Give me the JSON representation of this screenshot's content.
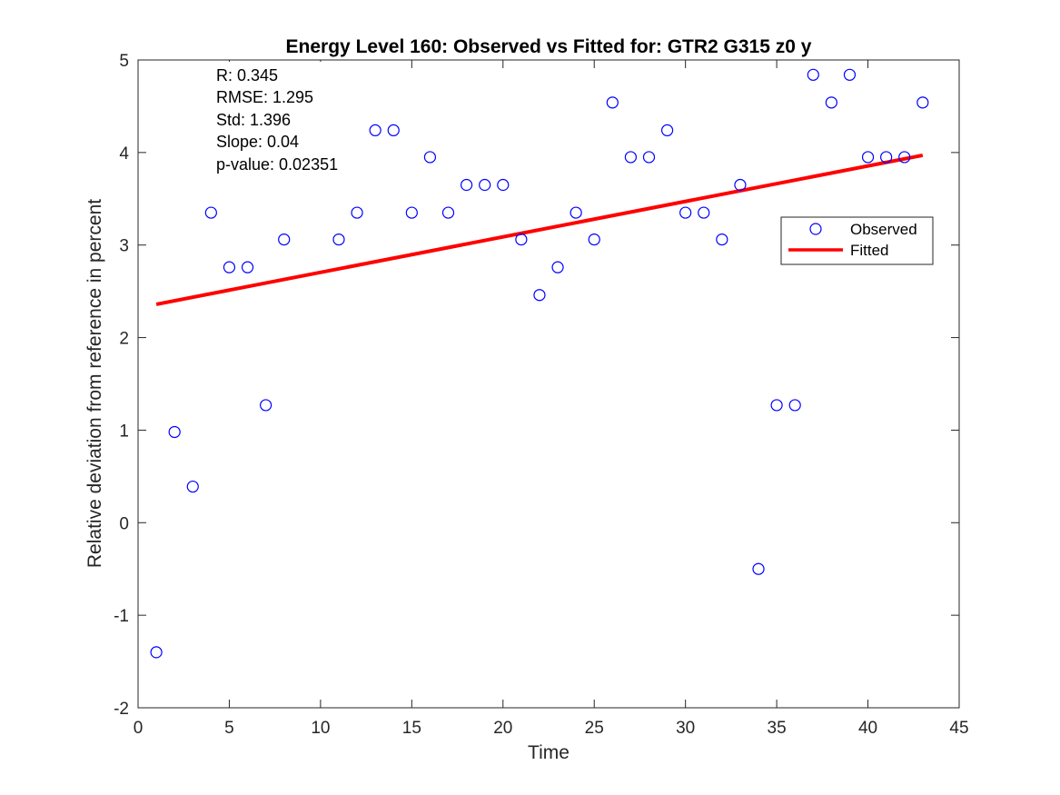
{
  "chart_data": {
    "type": "scatter",
    "title": "Energy Level 160: Observed vs Fitted for: GTR2 G315 z0 y",
    "xlabel": "Time",
    "ylabel": "Relative deviation from reference in percent",
    "xlim": [
      0,
      45
    ],
    "ylim": [
      -2,
      5
    ],
    "xticks": [
      0,
      5,
      10,
      15,
      20,
      25,
      30,
      35,
      40,
      45
    ],
    "yticks": [
      -2,
      -1,
      0,
      1,
      2,
      3,
      4,
      5
    ],
    "grid": false,
    "legend_position": "right",
    "stats": [
      "R: 0.345",
      "RMSE: 1.295",
      "Std: 1.396",
      "Slope: 0.04",
      "p-value: 0.02351"
    ],
    "series": [
      {
        "name": "Observed",
        "style": "circle-markers",
        "color": "#0000ff",
        "x": [
          1,
          2,
          3,
          4,
          5,
          6,
          7,
          8,
          11,
          12,
          13,
          14,
          15,
          16,
          17,
          18,
          19,
          20,
          21,
          22,
          23,
          24,
          25,
          26,
          27,
          28,
          29,
          30,
          31,
          32,
          33,
          34,
          35,
          36,
          37,
          38,
          39,
          40,
          41,
          42,
          43
        ],
        "y": [
          -1.4,
          0.98,
          0.39,
          3.35,
          2.76,
          2.76,
          1.27,
          3.06,
          3.06,
          3.35,
          4.24,
          4.24,
          3.35,
          3.95,
          3.35,
          3.65,
          3.65,
          3.65,
          3.06,
          2.46,
          2.76,
          3.35,
          3.06,
          4.54,
          3.95,
          3.95,
          4.24,
          3.35,
          3.35,
          3.06,
          3.65,
          -0.5,
          1.27,
          1.27,
          4.84,
          4.54,
          4.84,
          3.95,
          3.95,
          3.95,
          4.54
        ]
      },
      {
        "name": "Fitted",
        "style": "line",
        "color": "#ff0000",
        "x": [
          1,
          43
        ],
        "y": [
          2.36,
          3.97
        ]
      }
    ]
  }
}
